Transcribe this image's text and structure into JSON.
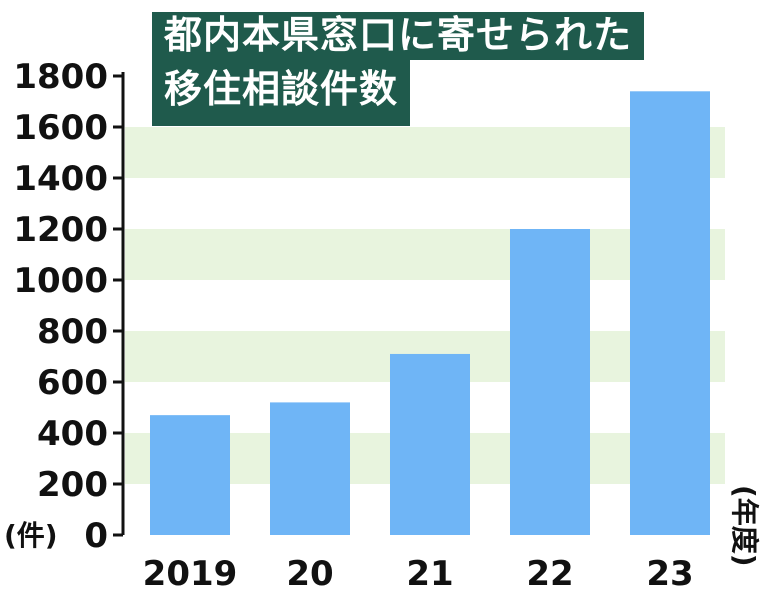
{
  "title_line1": "都内本県窓口に寄せられた",
  "title_line2": "移住相談件数",
  "chart_data": {
    "type": "bar",
    "title": "都内本県窓口に寄せられた移住相談件数",
    "categories": [
      "2019",
      "20",
      "21",
      "22",
      "23"
    ],
    "values": [
      470,
      520,
      710,
      1200,
      1740
    ],
    "ylim": [
      0,
      1800
    ],
    "yticks": [
      0,
      200,
      400,
      600,
      800,
      1000,
      1200,
      1400,
      1600,
      1800
    ],
    "y_unit": "(件)",
    "x_unit": "(年度)",
    "grid": "horizontal bands",
    "colors": {
      "bar": "#6fb5f6",
      "band": "#e8f4de",
      "axis": "#111111",
      "title_bg": "#1f5a4c",
      "title_text": "#ffffff"
    }
  }
}
